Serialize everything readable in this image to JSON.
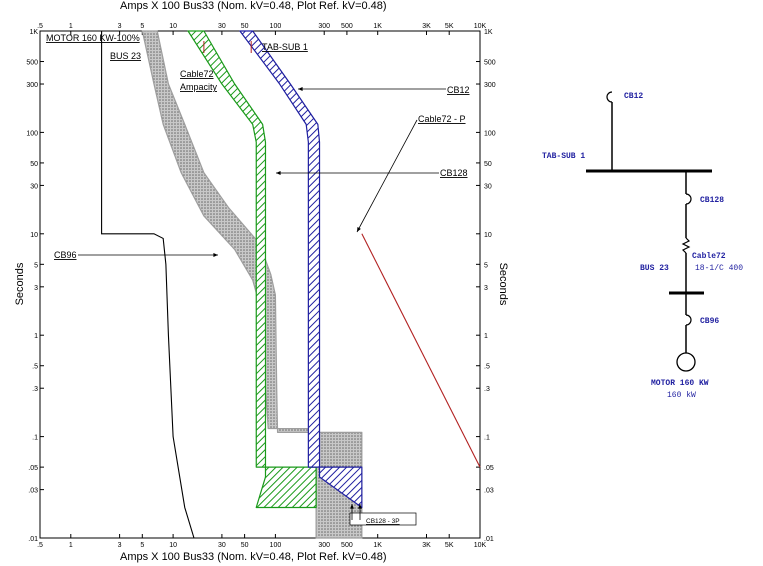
{
  "plot": {
    "top_title": "Amps  X  100   Bus33 (Nom. kV=0.48, Plot Ref. kV=0.48)",
    "bottom_title": "Amps  X  100   Bus33 (Nom. kV=0.48, Plot Ref. kV=0.48)",
    "y_label_left": "Seconds",
    "y_label_right": "Seconds",
    "x_ticks": [
      ".5",
      "1",
      "3",
      "5",
      "10",
      "30",
      "50",
      "100",
      "300",
      "500",
      "1K",
      "3K",
      "5K",
      "10K"
    ],
    "y_ticks": [
      "1K",
      "500",
      "300",
      "100",
      "50",
      "30",
      "10",
      "5",
      "3",
      "1",
      ".5",
      ".3",
      ".1",
      ".05",
      ".03",
      ".01"
    ]
  },
  "chart_data": {
    "type": "scatter",
    "xscale": "log",
    "yscale": "log",
    "xlabel": "Amps  X  100   Bus33 (Nom. kV=0.48, Plot Ref. kV=0.48)",
    "ylabel": "Seconds",
    "xlim": [
      0.5,
      10000
    ],
    "ylim": [
      0.01,
      1000
    ],
    "grid": false,
    "series": [
      {
        "name": "MOTOR 160 KW-100%",
        "style": "line",
        "color": "#000000",
        "points": [
          [
            2,
            1000
          ],
          [
            2,
            10
          ],
          [
            6.5,
            10
          ],
          [
            8,
            9
          ],
          [
            8.5,
            5
          ],
          [
            9,
            1
          ],
          [
            10,
            0.1
          ],
          [
            13,
            0.02
          ],
          [
            16,
            0.01
          ]
        ]
      },
      {
        "name": "CB96",
        "style": "band",
        "color": "#9e9e9e",
        "upper": [
          [
            5,
            1000
          ],
          [
            6.5,
            300
          ],
          [
            8,
            120
          ],
          [
            12,
            40
          ],
          [
            20,
            15
          ],
          [
            40,
            7
          ],
          [
            60,
            3.5
          ],
          [
            70,
            2
          ],
          [
            78,
            1
          ],
          [
            80,
            0.3
          ],
          [
            85,
            0.12
          ],
          [
            250,
            0.12
          ],
          [
            250,
            0.01
          ]
        ],
        "lower": [
          [
            7,
            1000
          ],
          [
            9,
            300
          ],
          [
            13,
            120
          ],
          [
            20,
            40
          ],
          [
            35,
            18
          ],
          [
            70,
            8
          ],
          [
            90,
            4
          ],
          [
            100,
            2.5
          ],
          [
            103,
            0.3
          ],
          [
            105,
            0.11
          ],
          [
            700,
            0.11
          ],
          [
            700,
            0.01
          ]
        ]
      },
      {
        "name": "Cable72 Ampacity",
        "style": "band",
        "color": "#1a9a1a",
        "upper": [
          [
            14,
            1000
          ],
          [
            30,
            300
          ],
          [
            60,
            120
          ],
          [
            65,
            80
          ],
          [
            65,
            0.05
          ],
          [
            250,
            0.05
          ],
          [
            250,
            0.02
          ],
          [
            65,
            0.02
          ]
        ],
        "lower": [
          [
            20,
            1000
          ],
          [
            40,
            300
          ],
          [
            75,
            120
          ],
          [
            80,
            80
          ],
          [
            80,
            0.04
          ]
        ]
      },
      {
        "name": "CB12",
        "style": "band",
        "color": "#1f1fa0",
        "upper": [
          [
            45,
            1000
          ],
          [
            110,
            300
          ],
          [
            200,
            120
          ],
          [
            210,
            80
          ],
          [
            210,
            0.05
          ],
          [
            700,
            0.05
          ],
          [
            700,
            0.02
          ]
        ],
        "lower": [
          [
            60,
            1000
          ],
          [
            140,
            300
          ],
          [
            260,
            120
          ],
          [
            270,
            80
          ],
          [
            270,
            0.04
          ]
        ]
      },
      {
        "name": "Cable72 - P",
        "style": "line",
        "color": "#b22222",
        "points": [
          [
            700,
            10
          ],
          [
            10000,
            0.05
          ]
        ]
      }
    ],
    "annotations": [
      "MOTOR 160 KW-100%",
      "BUS 23",
      "Cable72",
      "Ampacity",
      "TAB-SUB 1",
      "CB12",
      "Cable72 - P",
      "CB128",
      "CB96",
      "CB128 - 3P"
    ]
  },
  "oneline": {
    "cb12": "CB12",
    "bus_main": "TAB-SUB 1",
    "cb128": "CB128",
    "cable": "Cable72",
    "cable_spec": "18-1/C 400",
    "bus23": "BUS 23",
    "cb96": "CB96",
    "motor": "MOTOR 160 KW",
    "motor_rating": "160 kW"
  },
  "colors": {
    "gray_band": "#9e9e9e",
    "green_band": "#1a9a1a",
    "blue_band": "#1f1fa0",
    "red_line": "#b22222",
    "oneline_text": "#1f1fa0"
  }
}
